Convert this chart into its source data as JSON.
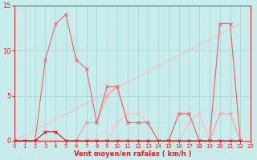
{
  "xlabel": "Vent moyen/en rafales ( km/h )",
  "xlim": [
    0,
    23
  ],
  "ylim": [
    0,
    15
  ],
  "yticks": [
    0,
    5,
    10,
    15
  ],
  "xticks": [
    0,
    1,
    2,
    3,
    4,
    5,
    6,
    7,
    8,
    9,
    10,
    11,
    12,
    13,
    14,
    15,
    16,
    17,
    18,
    19,
    20,
    21,
    22,
    23
  ],
  "bg_color": "#c8ecec",
  "grid_color": "#a8d8d8",
  "tick_color": "#dd2222",
  "lines": [
    {
      "x": [
        0,
        1,
        2,
        3,
        4,
        5,
        6,
        7,
        8,
        9,
        10,
        11,
        12,
        13,
        14,
        15,
        16,
        17,
        18,
        19,
        20,
        21,
        22
      ],
      "y": [
        0,
        0,
        0,
        1,
        1,
        0,
        0,
        0,
        0,
        0,
        0,
        0,
        0,
        0,
        0,
        0,
        0,
        0,
        0,
        0,
        0,
        0,
        0
      ],
      "color": "#dd1111",
      "lw": 0.8,
      "marker": "x",
      "ms": 2.5,
      "zorder": 5
    },
    {
      "x": [
        0,
        1,
        2,
        3,
        4,
        5,
        6,
        7,
        8,
        9,
        10,
        11,
        12,
        13,
        14,
        15,
        16,
        17,
        18,
        19,
        20,
        21,
        22
      ],
      "y": [
        0,
        0,
        0,
        9,
        13,
        14,
        9,
        8,
        2,
        6,
        6,
        2,
        2,
        2,
        0,
        0,
        3,
        3,
        0,
        0,
        13,
        13,
        0
      ],
      "color": "#ee6666",
      "lw": 0.8,
      "marker": "x",
      "ms": 2.5,
      "zorder": 4
    },
    {
      "x": [
        0,
        1,
        2,
        3,
        4,
        5,
        6,
        7,
        8,
        9,
        10,
        11,
        12,
        13,
        14,
        15,
        16,
        17,
        18,
        19,
        20,
        21,
        22
      ],
      "y": [
        0,
        0,
        0,
        0,
        0,
        0,
        0,
        2,
        2,
        5,
        6,
        2,
        2,
        2,
        0,
        0,
        3,
        3,
        0,
        0,
        3,
        3,
        0
      ],
      "color": "#ff9999",
      "lw": 0.8,
      "marker": "x",
      "ms": 2.5,
      "zorder": 3
    },
    {
      "x": [
        0,
        1,
        2,
        3,
        4,
        5,
        6,
        7,
        8,
        9,
        10,
        11,
        12,
        13,
        14,
        15,
        16,
        17,
        18,
        19,
        20,
        21,
        22
      ],
      "y": [
        0,
        0,
        0,
        0,
        0,
        0,
        0,
        0,
        0,
        0,
        2,
        3,
        3,
        2,
        0,
        0,
        0,
        2,
        3,
        0,
        13,
        13,
        0
      ],
      "color": "#ffbbbb",
      "lw": 0.8,
      "marker": "x",
      "ms": 2.5,
      "zorder": 2
    },
    {
      "x": [
        0,
        22
      ],
      "y": [
        0,
        13
      ],
      "color": "#ffbbbb",
      "lw": 0.8,
      "marker": null,
      "ms": 0,
      "zorder": 1
    },
    {
      "x": [
        0,
        1,
        2,
        3,
        4,
        5,
        6,
        7,
        8,
        9,
        10,
        11,
        12,
        13,
        14,
        15,
        16,
        17,
        18,
        19,
        20,
        21,
        22
      ],
      "y": [
        0,
        0,
        0,
        0,
        0,
        0,
        0,
        0,
        0.5,
        1,
        2,
        3,
        3,
        2,
        2,
        2,
        2,
        2,
        2,
        1,
        0,
        0,
        0
      ],
      "color": "#ffcccc",
      "lw": 0.8,
      "marker": null,
      "ms": 0,
      "zorder": 1
    }
  ]
}
